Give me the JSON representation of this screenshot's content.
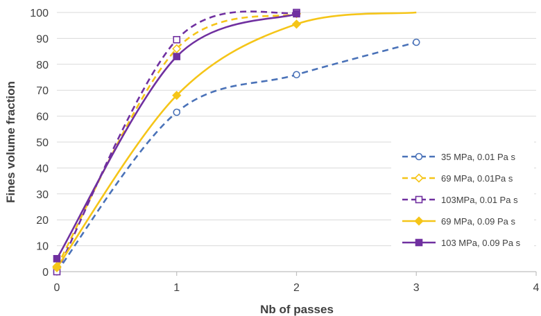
{
  "chart_data": {
    "type": "line",
    "title": "",
    "xlabel": "Nb of passes",
    "ylabel": "Fines volume fraction",
    "xlim": [
      0,
      4
    ],
    "ylim": [
      0,
      100
    ],
    "xticks": [
      "0",
      "1",
      "2",
      "3",
      "4"
    ],
    "yticks": [
      "0",
      "10",
      "20",
      "30",
      "40",
      "50",
      "60",
      "70",
      "80",
      "90",
      "100"
    ],
    "grid": "horizontal",
    "legend_position": "lower-right",
    "series": [
      {
        "name": "35 MPa, 0.01 Pa s",
        "color": "#4a72b8",
        "line_style": "dashed",
        "marker": "open-circle",
        "x": [
          0,
          1,
          2,
          3
        ],
        "y": [
          0,
          61.5,
          76,
          88.5
        ]
      },
      {
        "name": "69 MPa, 0.01Pa s",
        "color": "#f5c518",
        "line_style": "dashed",
        "marker": "open-diamond",
        "x": [
          0,
          1,
          2
        ],
        "y": [
          2,
          86,
          99.5
        ]
      },
      {
        "name": "103MPa, 0.01 Pa s",
        "color": "#7030a0",
        "line_style": "dashed",
        "marker": "open-square",
        "x": [
          0,
          1,
          2
        ],
        "y": [
          0,
          89.5,
          100
        ]
      },
      {
        "name": "69 MPa, 0.09 Pa s",
        "color": "#f5c518",
        "line_style": "solid",
        "marker": "filled-diamond",
        "x": [
          0,
          1,
          2,
          3
        ],
        "y": [
          1.5,
          68,
          95.5,
          100
        ]
      },
      {
        "name": "103 MPa, 0.09 Pa s",
        "color": "#7030a0",
        "line_style": "solid",
        "marker": "filled-square",
        "x": [
          0,
          1,
          2
        ],
        "y": [
          5,
          83,
          99.5
        ]
      }
    ]
  }
}
